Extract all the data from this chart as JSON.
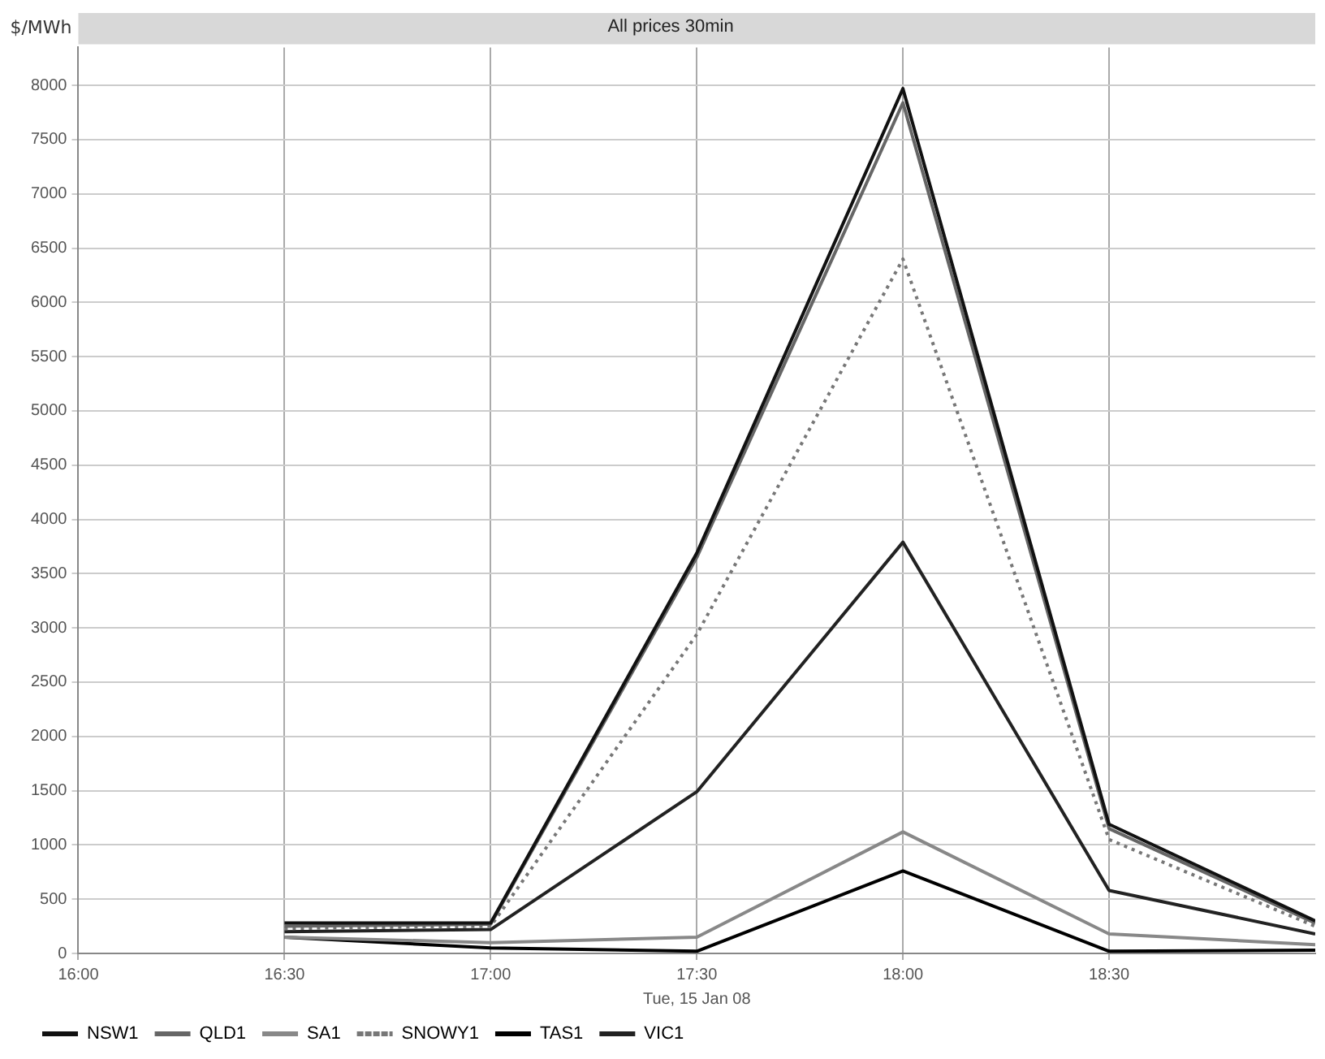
{
  "chart_data": {
    "type": "line",
    "title": "All prices 30min",
    "xlabel": "Tue, 15 Jan 08",
    "ylabel": "$/MWh",
    "x": [
      16.5,
      17,
      17.5,
      18,
      18.5,
      19
    ],
    "xlim": [
      16,
      19
    ],
    "xticks": [
      {
        "value": 16,
        "label": "16:00"
      },
      {
        "value": 16.5,
        "label": "16:30"
      },
      {
        "value": 17,
        "label": "17:00"
      },
      {
        "value": 17.5,
        "label": "17:30"
      },
      {
        "value": 18,
        "label": "18:00"
      },
      {
        "value": 18.5,
        "label": "18:30"
      }
    ],
    "ylim": [
      0,
      8350
    ],
    "yticks": [
      0,
      500,
      1000,
      1500,
      2000,
      2500,
      3000,
      3500,
      4000,
      4500,
      5000,
      5500,
      6000,
      6500,
      7000,
      7500,
      8000
    ],
    "grid": true,
    "legend": "bottom",
    "marker": "none",
    "series": [
      {
        "name": "NSW1",
        "color": "#111111",
        "line_style": "solid",
        "values": [
          280,
          280,
          3690,
          7970,
          1190,
          300
        ]
      },
      {
        "name": "QLD1",
        "color": "#666666",
        "line_style": "solid",
        "values": [
          250,
          270,
          3650,
          7840,
          1150,
          280
        ]
      },
      {
        "name": "SA1",
        "color": "#888888",
        "line_style": "solid",
        "values": [
          150,
          100,
          150,
          1120,
          180,
          80
        ]
      },
      {
        "name": "SNOWY1",
        "color": "#777777",
        "line_style": "dotted",
        "values": [
          230,
          250,
          2940,
          6400,
          1050,
          250
        ]
      },
      {
        "name": "TAS1",
        "color": "#000000",
        "line_style": "solid",
        "values": [
          150,
          50,
          20,
          760,
          20,
          30
        ]
      },
      {
        "name": "VIC1",
        "color": "#222222",
        "line_style": "solid",
        "values": [
          200,
          220,
          1490,
          3790,
          580,
          180
        ]
      }
    ]
  }
}
